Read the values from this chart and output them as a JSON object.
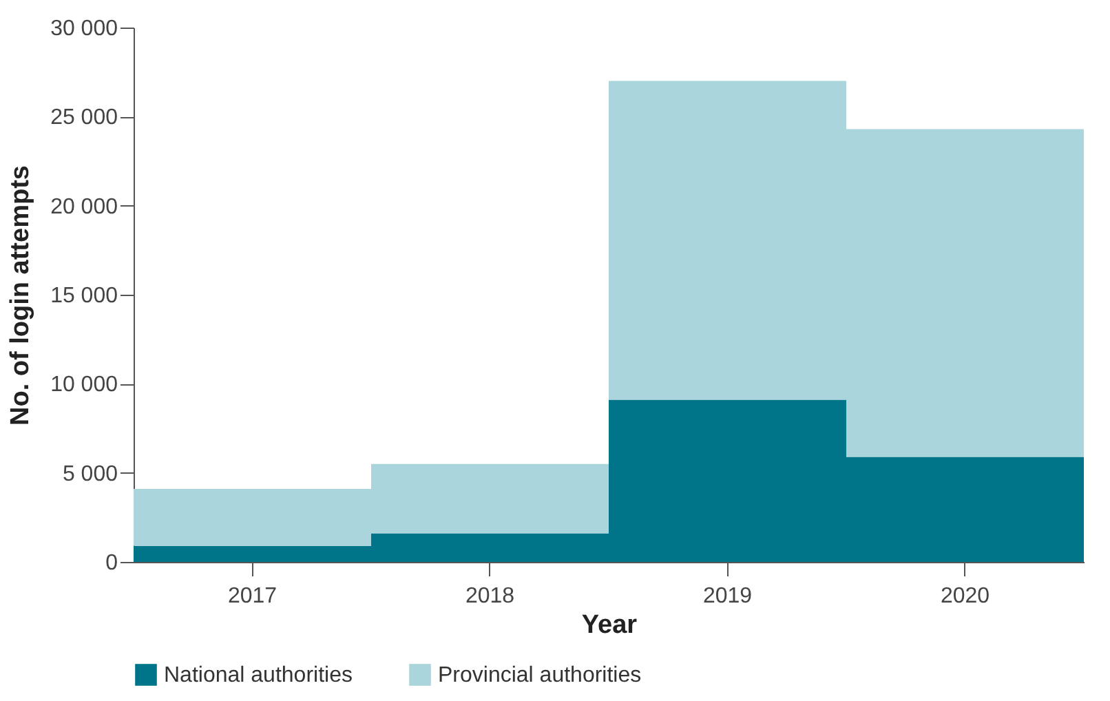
{
  "chart_data": {
    "type": "bar",
    "stacked": true,
    "xlabel": "Year",
    "ylabel": "No. of login attempts",
    "categories": [
      "2017",
      "2018",
      "2019",
      "2020"
    ],
    "series": [
      {
        "name": "National authorities",
        "color": "#00758a",
        "values": [
          900,
          1600,
          9100,
          5900
        ]
      },
      {
        "name": "Provincial authorities",
        "color": "#aad5dc",
        "values": [
          3200,
          3900,
          17900,
          18400
        ]
      }
    ],
    "ylim": [
      0,
      30000
    ],
    "yticks": [
      0,
      {
        "value": 5000,
        "label": "5 000"
      },
      {
        "value": 10000,
        "label": "10 000"
      },
      {
        "value": 15000,
        "label": "15 000"
      },
      {
        "value": 20000,
        "label": "20 000"
      },
      {
        "value": 25000,
        "label": "25 000"
      },
      {
        "value": 30000,
        "label": "30 000"
      }
    ],
    "grid": false,
    "legend": "bottom"
  }
}
